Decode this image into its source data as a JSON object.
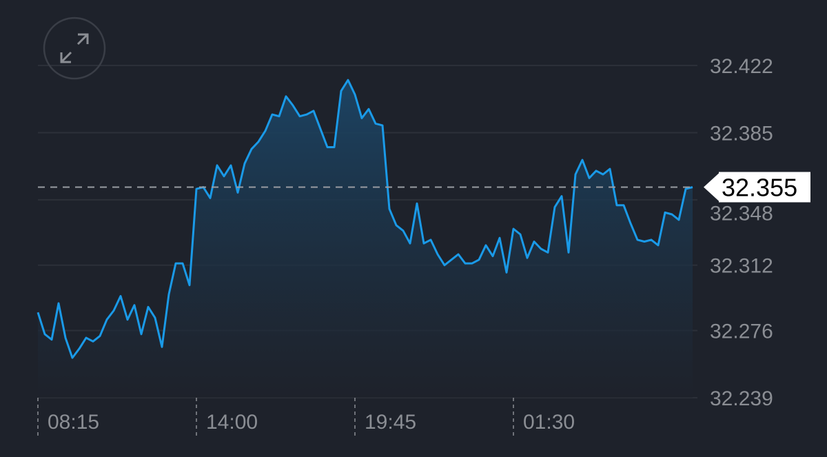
{
  "chart_data": {
    "type": "area",
    "title": "",
    "xlabel": "",
    "ylabel": "",
    "ylim": [
      32.239,
      32.422
    ],
    "grid": true,
    "y_ticks": [
      "32.422",
      "32.385",
      "32.348",
      "32.312",
      "32.276",
      "32.239"
    ],
    "x_ticks": [
      "08:15",
      "14:00",
      "19:45",
      "01:30"
    ],
    "current_price": "32.355",
    "line_color": "#1a9ae8",
    "fill_color": "#1b4566",
    "x": [
      "08:15",
      "08:30",
      "08:45",
      "09:00",
      "09:15",
      "09:30",
      "09:45",
      "10:00",
      "10:15",
      "10:30",
      "10:45",
      "11:00",
      "11:15",
      "11:30",
      "11:45",
      "12:00",
      "12:15",
      "12:30",
      "12:45",
      "13:00",
      "13:15",
      "13:30",
      "13:45",
      "14:00",
      "14:15",
      "14:30",
      "14:45",
      "15:00",
      "15:15",
      "15:30",
      "15:45",
      "16:00",
      "16:15",
      "16:30",
      "16:45",
      "17:00",
      "17:15",
      "17:30",
      "17:45",
      "18:00",
      "18:15",
      "18:30",
      "18:45",
      "19:00",
      "19:15",
      "19:30",
      "19:45",
      "20:00",
      "20:15",
      "20:30",
      "20:45",
      "21:00",
      "21:15",
      "21:30",
      "21:45",
      "22:00",
      "22:15",
      "22:30",
      "22:45",
      "23:00",
      "23:15",
      "23:30",
      "23:45",
      "00:00",
      "00:15",
      "00:30",
      "00:45",
      "01:00",
      "01:15",
      "01:30",
      "01:45",
      "02:00",
      "02:15",
      "02:30",
      "02:45",
      "03:00",
      "03:15",
      "03:30",
      "03:45",
      "04:00",
      "04:15",
      "04:30",
      "04:45",
      "05:00",
      "05:15",
      "05:30",
      "05:45",
      "06:00",
      "06:15",
      "06:30",
      "06:45",
      "07:00",
      "07:15",
      "07:30",
      "07:45",
      "08:00"
    ],
    "values": [
      32.286,
      32.274,
      32.271,
      32.291,
      32.272,
      32.261,
      32.266,
      32.272,
      32.27,
      32.273,
      32.282,
      32.287,
      32.295,
      32.282,
      32.29,
      32.274,
      32.289,
      32.283,
      32.267,
      32.296,
      32.313,
      32.313,
      32.301,
      32.354,
      32.355,
      32.349,
      32.367,
      32.361,
      32.367,
      32.352,
      32.368,
      32.376,
      32.38,
      32.386,
      32.395,
      32.394,
      32.405,
      32.4,
      32.394,
      32.395,
      32.397,
      32.387,
      32.377,
      32.377,
      32.408,
      32.414,
      32.406,
      32.393,
      32.398,
      32.39,
      32.389,
      32.343,
      32.334,
      32.331,
      32.324,
      32.346,
      32.324,
      32.326,
      32.318,
      32.312,
      32.315,
      32.318,
      32.313,
      32.313,
      32.315,
      32.323,
      32.317,
      32.327,
      32.308,
      32.332,
      32.329,
      32.316,
      32.325,
      32.321,
      32.319,
      32.344,
      32.35,
      32.319,
      32.362,
      32.37,
      32.36,
      32.364,
      32.362,
      32.365,
      32.345,
      32.345,
      32.335,
      32.326,
      32.325,
      32.326,
      32.323,
      32.341,
      32.34,
      32.337,
      32.354,
      32.355
    ]
  },
  "controls": {
    "expand_icon": "expand-arrows-icon"
  }
}
